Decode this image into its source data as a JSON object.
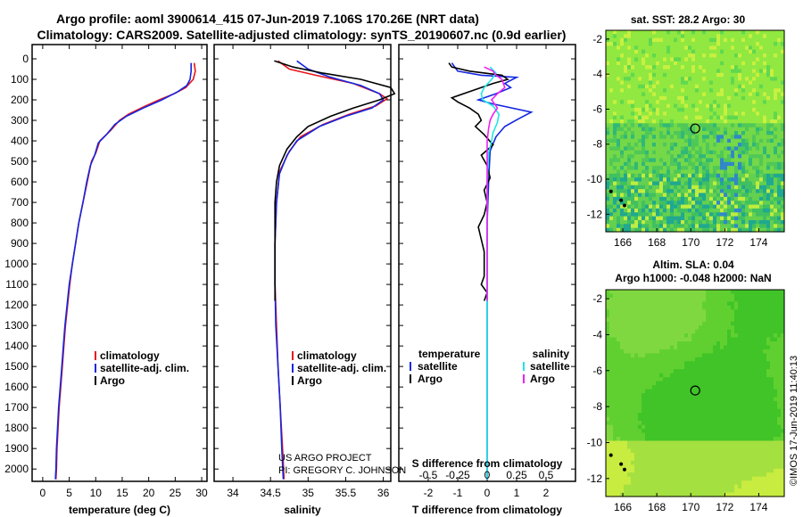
{
  "header": {
    "title_line1": "Argo profile: aoml 3900614_415 07-Jun-2019 7.106S 170.26E (NRT data)",
    "title_line2": "Climatology: CARS2009. Satellite-adjusted climatology: synTS_20190607.nc (0.9d earlier)"
  },
  "credit": {
    "line1": "US ARGO PROJECT",
    "line2": "PI: GREGORY C. JOHNSON"
  },
  "watermark": "©IMOS 17-Jun-2019 11:40:13",
  "colors": {
    "climatology": "#e8141e",
    "satellite": "#1426e0",
    "argo": "#000000",
    "sal_satellite": "#1ee6e6",
    "sal_argo": "#f020f0"
  },
  "chart_data": [
    {
      "type": "line",
      "id": "temperature",
      "xlabel": "temperature (deg C)",
      "ylabel": "",
      "xlim": [
        -2,
        31
      ],
      "ylim": [
        2060,
        0
      ],
      "xticks": [
        0,
        5,
        10,
        15,
        20,
        25,
        30
      ],
      "yticks": [
        0,
        100,
        200,
        300,
        400,
        500,
        600,
        700,
        800,
        900,
        1000,
        1100,
        1200,
        1300,
        1400,
        1500,
        1600,
        1700,
        1800,
        1900,
        2000
      ],
      "legend": [
        "climatology",
        "satellite-adj. clim.",
        "Argo"
      ],
      "series": [
        {
          "name": "climatology",
          "color": "#e8141e",
          "points": [
            [
              28.6,
              20
            ],
            [
              28.8,
              60
            ],
            [
              28.4,
              100
            ],
            [
              27.0,
              140
            ],
            [
              24.8,
              170
            ],
            [
              22,
              200
            ],
            [
              19.4,
              230
            ],
            [
              16.2,
              270
            ],
            [
              14.5,
              300
            ],
            [
              12.8,
              350
            ],
            [
              10.8,
              400
            ],
            [
              10,
              460
            ],
            [
              9.2,
              500
            ],
            [
              8.4,
              600
            ],
            [
              7.6,
              700
            ],
            [
              6.8,
              800
            ],
            [
              6.2,
              900
            ],
            [
              5.6,
              1000
            ],
            [
              5.1,
              1100
            ],
            [
              4.7,
              1200
            ],
            [
              4.3,
              1300
            ],
            [
              4.0,
              1400
            ],
            [
              3.7,
              1500
            ],
            [
              3.4,
              1600
            ],
            [
              3.1,
              1700
            ],
            [
              2.9,
              1800
            ],
            [
              2.7,
              1900
            ],
            [
              2.6,
              2000
            ],
            [
              2.5,
              2050
            ]
          ]
        },
        {
          "name": "satellite-adj. clim.",
          "color": "#1426e0",
          "points": [
            [
              28.0,
              20
            ],
            [
              28.0,
              60
            ],
            [
              27.8,
              100
            ],
            [
              27.2,
              130
            ],
            [
              25.5,
              160
            ],
            [
              22.5,
              200
            ],
            [
              19,
              240
            ],
            [
              15.8,
              280
            ],
            [
              13.6,
              320
            ],
            [
              12,
              370
            ],
            [
              10.5,
              410
            ],
            [
              9.8,
              470
            ],
            [
              9.0,
              520
            ],
            [
              8.3,
              600
            ],
            [
              7.6,
              700
            ],
            [
              6.8,
              800
            ],
            [
              6.2,
              900
            ],
            [
              5.6,
              1000
            ],
            [
              5.0,
              1100
            ],
            [
              4.6,
              1200
            ],
            [
              4.2,
              1300
            ],
            [
              3.9,
              1400
            ],
            [
              3.6,
              1500
            ],
            [
              3.3,
              1600
            ],
            [
              3.0,
              1700
            ],
            [
              2.8,
              1800
            ],
            [
              2.6,
              1900
            ],
            [
              2.5,
              2000
            ],
            [
              2.4,
              2050
            ]
          ]
        },
        {
          "name": "Argo",
          "color": "#000000",
          "points": []
        }
      ]
    },
    {
      "type": "line",
      "id": "salinity",
      "xlabel": "salinity",
      "ylabel": "",
      "xlim": [
        33.75,
        36.1
      ],
      "ylim": [
        2060,
        0
      ],
      "xticks": [
        34,
        34.5,
        35,
        35.5,
        36
      ],
      "legend": [
        "climatology",
        "satellite-adj. clim.",
        "Argo"
      ],
      "series": [
        {
          "name": "climatology",
          "color": "#e8141e",
          "points": [
            [
              34.6,
              10
            ],
            [
              34.75,
              50
            ],
            [
              35.1,
              80
            ],
            [
              35.6,
              120
            ],
            [
              35.95,
              170
            ],
            [
              36.05,
              195
            ],
            [
              35.9,
              230
            ],
            [
              35.55,
              270
            ],
            [
              35.2,
              320
            ],
            [
              34.9,
              380
            ],
            [
              34.75,
              450
            ],
            [
              34.62,
              550
            ],
            [
              34.58,
              700
            ],
            [
              34.56,
              900
            ],
            [
              34.56,
              1100
            ],
            [
              34.58,
              1300
            ],
            [
              34.6,
              1500
            ],
            [
              34.63,
              1700
            ],
            [
              34.66,
              1900
            ],
            [
              34.68,
              2050
            ]
          ]
        },
        {
          "name": "satellite-adj. clim.",
          "color": "#1426e0",
          "points": [
            [
              34.85,
              10
            ],
            [
              35.0,
              50
            ],
            [
              35.3,
              90
            ],
            [
              35.7,
              130
            ],
            [
              35.95,
              170
            ],
            [
              36.0,
              200
            ],
            [
              35.85,
              240
            ],
            [
              35.5,
              280
            ],
            [
              35.15,
              330
            ],
            [
              34.85,
              400
            ],
            [
              34.72,
              470
            ],
            [
              34.62,
              560
            ],
            [
              34.58,
              700
            ],
            [
              34.56,
              900
            ],
            [
              34.56,
              1100
            ],
            [
              34.57,
              1300
            ],
            [
              34.6,
              1500
            ],
            [
              34.63,
              1700
            ],
            [
              34.65,
              1900
            ],
            [
              34.67,
              2050
            ]
          ]
        },
        {
          "name": "Argo",
          "color": "#000000",
          "points": [
            [
              34.55,
              10
            ],
            [
              34.8,
              40
            ],
            [
              35.2,
              70
            ],
            [
              35.7,
              100
            ],
            [
              36.1,
              140
            ],
            [
              36.15,
              170
            ],
            [
              35.95,
              200
            ],
            [
              35.6,
              240
            ],
            [
              35.3,
              280
            ],
            [
              35.0,
              330
            ],
            [
              34.85,
              380
            ],
            [
              34.72,
              440
            ],
            [
              34.62,
              520
            ],
            [
              34.58,
              600
            ],
            [
              34.56,
              700
            ],
            [
              34.56,
              800
            ],
            [
              34.56,
              900
            ],
            [
              34.56,
              1000
            ],
            [
              34.56,
              1100
            ],
            [
              34.56,
              1180
            ]
          ]
        }
      ]
    },
    {
      "type": "line",
      "id": "differences",
      "xlabel": "T difference from climatology",
      "xlabel2": "S difference from climatology",
      "xlim": [
        -3,
        3
      ],
      "ylim": [
        2060,
        0
      ],
      "xticks": [
        -2,
        -1,
        0,
        1,
        2
      ],
      "xticks2": [
        -0.5,
        -0.25,
        0,
        0.25,
        0.5
      ],
      "xticks2_labels": [
        "-0.5",
        "-0.25",
        "0",
        "0.25",
        "0.5"
      ],
      "legend_left_title": "temperature",
      "legend_right_title": "salinity",
      "legend": [
        "satellite",
        "Argo",
        "satellite",
        "Argo"
      ],
      "series": [
        {
          "name": "T satellite",
          "color": "#1426e0",
          "points": [
            [
              -1.2,
              20
            ],
            [
              -1.0,
              60
            ],
            [
              -0.2,
              80
            ],
            [
              1.0,
              90
            ],
            [
              0.6,
              120
            ],
            [
              0.8,
              140
            ],
            [
              0.3,
              170
            ],
            [
              -0.3,
              200
            ],
            [
              0.2,
              220
            ],
            [
              1.5,
              260
            ],
            [
              1.1,
              290
            ],
            [
              0.6,
              330
            ],
            [
              0.3,
              380
            ],
            [
              0.1,
              450
            ],
            [
              0.05,
              600
            ],
            [
              0,
              800
            ],
            [
              0,
              1000
            ],
            [
              0,
              1200
            ],
            [
              0,
              1500
            ],
            [
              0,
              1800
            ],
            [
              0,
              2050
            ]
          ]
        },
        {
          "name": "T Argo",
          "color": "#000000",
          "points": [
            [
              -1.3,
              20
            ],
            [
              -1.2,
              40
            ],
            [
              -0.6,
              60
            ],
            [
              0.5,
              80
            ],
            [
              0.7,
              100
            ],
            [
              0.2,
              120
            ],
            [
              -0.4,
              150
            ],
            [
              -1.2,
              190
            ],
            [
              -1.0,
              210
            ],
            [
              -0.6,
              240
            ],
            [
              -0.3,
              270
            ],
            [
              -0.2,
              300
            ],
            [
              -0.4,
              330
            ],
            [
              -0.1,
              370
            ],
            [
              0.2,
              420
            ],
            [
              -0.2,
              470
            ],
            [
              0,
              520
            ],
            [
              0.1,
              580
            ],
            [
              -0.1,
              640
            ],
            [
              0,
              700
            ],
            [
              -0.1,
              760
            ],
            [
              -0.3,
              820
            ],
            [
              -0.2,
              880
            ],
            [
              -0.1,
              940
            ],
            [
              -0.1,
              1000
            ],
            [
              -0.1,
              1060
            ],
            [
              -0.2,
              1100
            ],
            [
              0,
              1140
            ],
            [
              -0.1,
              1180
            ]
          ]
        },
        {
          "name": "S satellite",
          "color": "#1ee6e6",
          "points": [
            [
              0.1,
              40
            ],
            [
              0.3,
              70
            ],
            [
              0.15,
              100
            ],
            [
              -0.1,
              140
            ],
            [
              -0.2,
              170
            ],
            [
              -0.15,
              200
            ],
            [
              0.2,
              230
            ],
            [
              0.4,
              270
            ],
            [
              0.35,
              310
            ],
            [
              0.2,
              360
            ],
            [
              0.15,
              400
            ],
            [
              0.05,
              460
            ],
            [
              0,
              600
            ],
            [
              0,
              900
            ],
            [
              0,
              1200
            ],
            [
              0,
              1500
            ],
            [
              0,
              1800
            ],
            [
              0,
              2050
            ]
          ]
        },
        {
          "name": "S Argo",
          "color": "#f020f0",
          "points": [
            [
              -0.1,
              40
            ],
            [
              0.2,
              60
            ],
            [
              0.3,
              80
            ],
            [
              0.5,
              100
            ],
            [
              0.6,
              140
            ],
            [
              0.35,
              170
            ],
            [
              0.15,
              200
            ],
            [
              0.35,
              240
            ],
            [
              0.2,
              270
            ],
            [
              0.1,
              300
            ],
            [
              0.05,
              340
            ],
            [
              0,
              400
            ],
            [
              0,
              500
            ],
            [
              0,
              700
            ],
            [
              0,
              900
            ],
            [
              0,
              1100
            ],
            [
              0,
              1180
            ]
          ]
        }
      ]
    },
    {
      "type": "heatmap",
      "id": "sst_map",
      "title": "sat. SST: 28.2  Argo: 30",
      "xlim": [
        165,
        175.5
      ],
      "ylim": [
        -13,
        -1.5
      ],
      "xticks": [
        166,
        168,
        170,
        172,
        174
      ],
      "yticks": [
        -2,
        -4,
        -6,
        -8,
        -10,
        -12
      ],
      "marker": [
        170.26,
        -7.106
      ]
    },
    {
      "type": "heatmap",
      "id": "sla_map",
      "title": "Altim. SLA: 0.04",
      "subtitle": "Argo h1000: -0.048  h2000: NaN",
      "xlim": [
        165,
        175.5
      ],
      "ylim": [
        -13,
        -1.5
      ],
      "xticks": [
        166,
        168,
        170,
        172,
        174
      ],
      "yticks": [
        -2,
        -4,
        -6,
        -8,
        -10,
        -12
      ],
      "marker": [
        170.26,
        -7.106
      ]
    }
  ]
}
